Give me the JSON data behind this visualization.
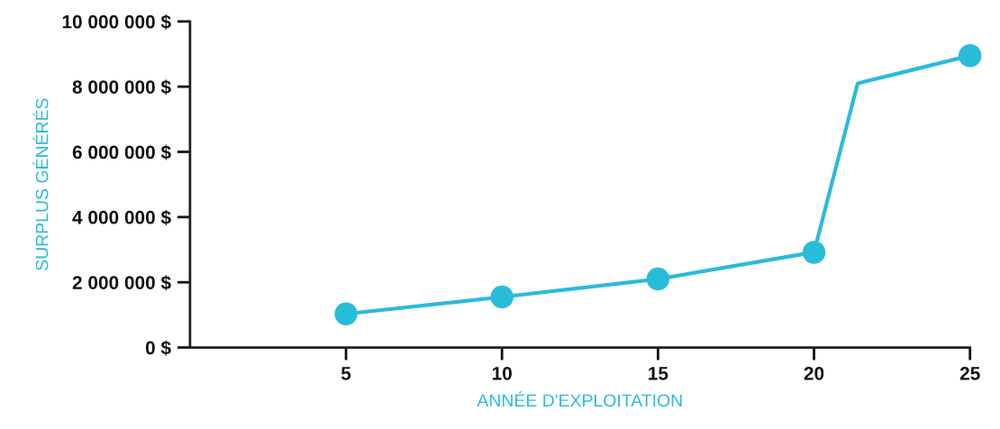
{
  "chart_data": {
    "type": "line",
    "xlabel": "ANNÉE D'EXPLOITATION",
    "ylabel": "SURPLUS GÉNÉRÉS",
    "xlim": [
      0,
      25
    ],
    "xticks": [
      5,
      10,
      15,
      20,
      25
    ],
    "ylim": [
      0,
      10000000
    ],
    "yticks": [
      {
        "value": 0,
        "label": "0 $"
      },
      {
        "value": 2000000,
        "label": "2 000 000 $"
      },
      {
        "value": 4000000,
        "label": "4 000 000 $"
      },
      {
        "value": 6000000,
        "label": "6 000 000 $"
      },
      {
        "value": 8000000,
        "label": "8 000 000 $"
      },
      {
        "value": 10000000,
        "label": "10 000 000 $"
      }
    ],
    "grid": false,
    "legend": false,
    "series": [
      {
        "marker": "none",
        "color": "#29bcd8",
        "x": [
          5,
          10,
          15,
          20,
          21.4,
          25
        ],
        "values": [
          1030000,
          1550000,
          2100000,
          2920000,
          8100000,
          8950000
        ]
      },
      {
        "type": "scatter",
        "marker": "circle",
        "color": "#29bcd8",
        "x": [
          5,
          10,
          15,
          20,
          25
        ],
        "values": [
          1030000,
          1550000,
          2100000,
          2920000,
          8950000
        ]
      }
    ]
  }
}
